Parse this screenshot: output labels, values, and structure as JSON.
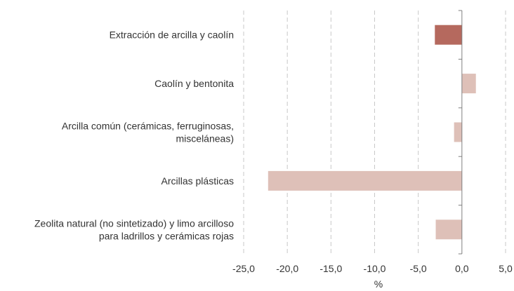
{
  "chart_data": {
    "type": "bar",
    "orientation": "horizontal",
    "categories": [
      [
        "Extracción de arcilla y caolín"
      ],
      [
        "Caolín y bentonita"
      ],
      [
        "Arcilla común (cerámicas, ferruginosas,",
        "misceláneas)"
      ],
      [
        "Arcillas plásticas"
      ],
      [
        "Zeolita natural (no sintetizado) y limo arcilloso",
        "para ladrillos y cerámicas rojas"
      ]
    ],
    "values": [
      -3.1,
      1.6,
      -0.9,
      -22.2,
      -3.0
    ],
    "highlight_index": 0,
    "x_ticks": [
      -25,
      -20,
      -15,
      -10,
      -5,
      0,
      5
    ],
    "x_tick_labels": [
      "-25,0",
      "-20,0",
      "-15,0",
      "-10,0",
      "-5,0",
      "0,0",
      "5,0"
    ],
    "xlim": [
      -25,
      5
    ],
    "xlabel": "%",
    "grid": true,
    "grid_style": "dashed-vertical",
    "colors": {
      "highlight": "#B5695E",
      "bar": "#DEC0B8",
      "grid": "#C8C8C8",
      "axis": "#7F7F7F",
      "text": "#333333"
    }
  }
}
